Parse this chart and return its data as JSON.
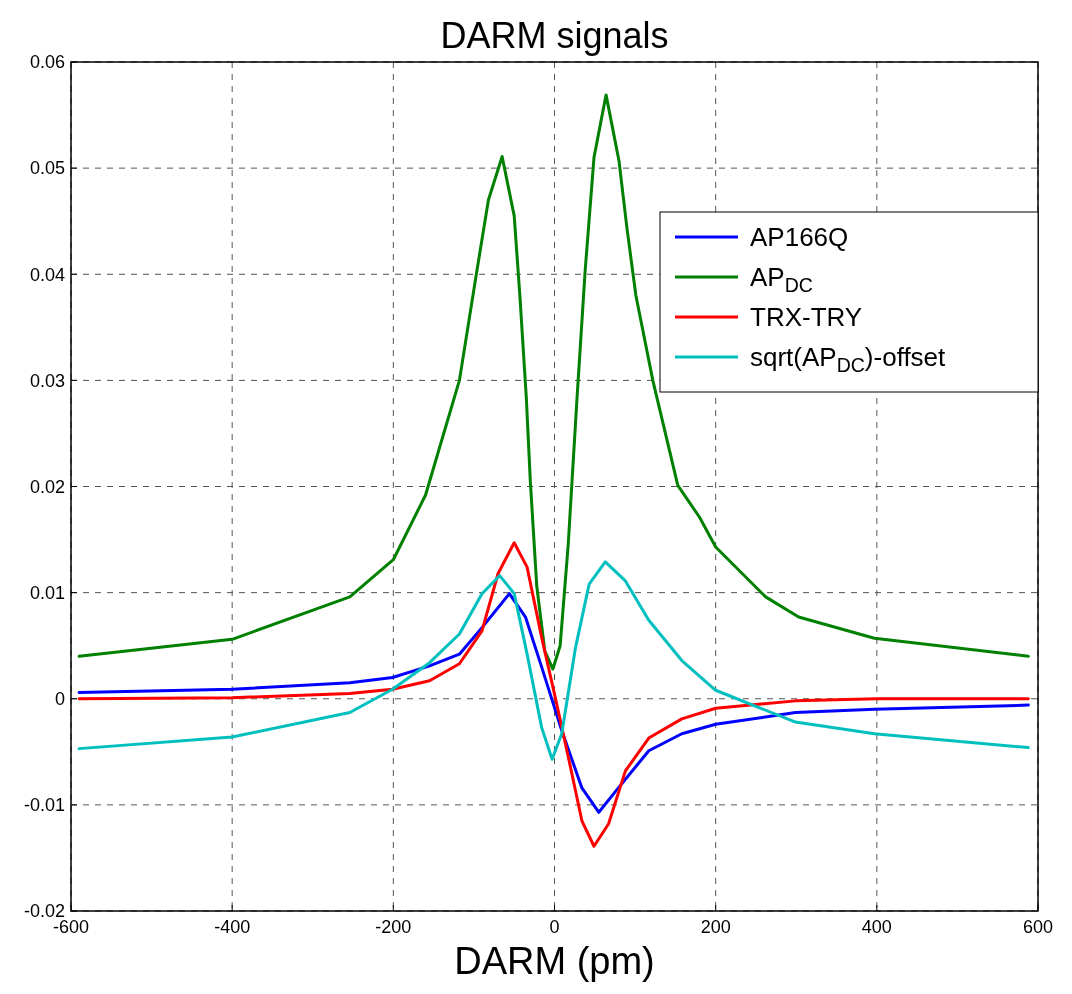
{
  "chart_data": {
    "type": "line",
    "title": "DARM signals",
    "xlabel": "DARM (pm)",
    "xlim": [
      -600,
      600
    ],
    "xticks": [
      -600,
      -400,
      -200,
      0,
      200,
      400,
      600
    ],
    "ylim": [
      -0.02,
      0.06
    ],
    "yticks": [
      -0.02,
      -0.01,
      0,
      0.01,
      0.02,
      0.03,
      0.04,
      0.05,
      0.06
    ],
    "grid": true,
    "legend": "top right",
    "line_style": "solid",
    "marker": "none",
    "series": [
      {
        "name": "AP166Q",
        "color": "#0000ff",
        "x": [
          -590,
          -400,
          -254,
          -201,
          -155,
          -118,
          -90,
          -56,
          -36,
          -16,
          9,
          34,
          55,
          76,
          117,
          158,
          200,
          299,
          397,
          588
        ],
        "values": [
          0.0006,
          0.0009,
          0.0015,
          0.002,
          0.0031,
          0.0042,
          0.0067,
          0.0099,
          0.0077,
          0.003,
          -0.003,
          -0.0084,
          -0.0107,
          -0.0087,
          -0.0049,
          -0.0033,
          -0.0024,
          -0.0013,
          -0.001,
          -0.0006
        ]
      },
      {
        "name": "AP$_{DC}$",
        "color": "#008000",
        "x": [
          -590,
          -400,
          -254,
          -200,
          -160,
          -118,
          -97,
          -82,
          -65,
          -50,
          -43,
          -35,
          -30,
          -22,
          -12,
          -2,
          7,
          17,
          28,
          38,
          49,
          64,
          80,
          90,
          101,
          122,
          153,
          180,
          200,
          262,
          303,
          397,
          588
        ],
        "values": [
          0.004,
          0.0056,
          0.0096,
          0.0131,
          0.0192,
          0.03,
          0.04,
          0.047,
          0.0511,
          0.0455,
          0.038,
          0.0284,
          0.0205,
          0.0106,
          0.0045,
          0.0028,
          0.005,
          0.0145,
          0.0284,
          0.0403,
          0.051,
          0.0569,
          0.0507,
          0.0443,
          0.038,
          0.03,
          0.0201,
          0.0171,
          0.0143,
          0.0096,
          0.0077,
          0.0057,
          0.004
        ]
      },
      {
        "name": "TRX-TRY",
        "color": "#ff0000",
        "x": [
          -590,
          -400,
          -254,
          -201,
          -155,
          -118,
          -90,
          -70,
          -50,
          -34,
          -16,
          1,
          18,
          34,
          49,
          67,
          88,
          117,
          158,
          200,
          299,
          400,
          588
        ],
        "values": [
          0,
          0.0001,
          0.0005,
          0.0009,
          0.0017,
          0.0033,
          0.0064,
          0.0118,
          0.0147,
          0.0124,
          0.0058,
          0.0001,
          -0.0058,
          -0.0115,
          -0.0139,
          -0.0118,
          -0.0068,
          -0.0037,
          -0.0019,
          -0.0009,
          -0.0002,
          0,
          0
        ]
      },
      {
        "name": "sqrt(AP$_{DC}$)-offset",
        "color": "#00bfbf",
        "x": [
          -590,
          -400,
          -254,
          -201,
          -155,
          -118,
          -90,
          -68,
          -50,
          -34,
          -16,
          -3,
          9,
          26,
          43,
          63,
          88,
          117,
          158,
          200,
          299,
          397,
          588
        ],
        "values": [
          -0.0047,
          -0.0036,
          -0.0013,
          0.0009,
          0.0034,
          0.0061,
          0.0099,
          0.0116,
          0.0099,
          0.0042,
          -0.0027,
          -0.0057,
          -0.0033,
          0.0048,
          0.0108,
          0.0129,
          0.0111,
          0.0074,
          0.0036,
          0.0008,
          -0.0022,
          -0.0033,
          -0.0046
        ]
      }
    ]
  }
}
